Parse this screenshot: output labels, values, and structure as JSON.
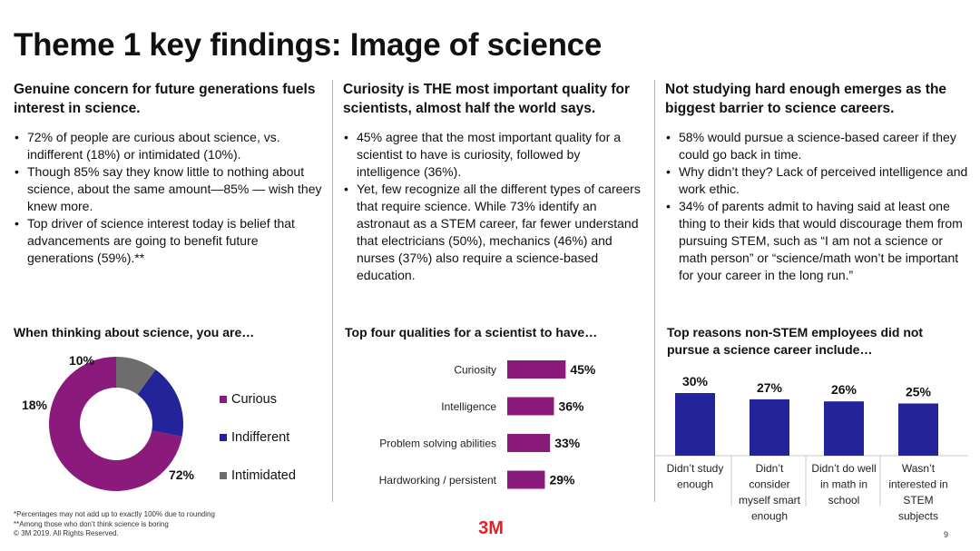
{
  "title": "Theme 1 key findings: Image of science",
  "columns": [
    {
      "heading": "Genuine concern for future generations fuels interest in science.",
      "bullets": [
        "72% of people are curious about science, vs. indifferent (18%) or intimidated (10%).",
        "Though 85% say they know little to nothing about science, about the same amount—85% — wish they knew more.",
        "Top driver of science interest today is belief that advancements are going to benefit future generations (59%).**"
      ]
    },
    {
      "heading": "Curiosity is THE most important quality for scientists, almost half the world says.",
      "bullets": [
        "45% agree that the most important quality for a scientist to have is curiosity, followed by intelligence (36%).",
        "Yet, few recognize all the different types of careers that require science. While 73% identify an astronaut as a STEM career,  far fewer understand that electricians (50%), mechanics (46%) and nurses (37%) also require a science-based education."
      ]
    },
    {
      "heading": "Not studying hard enough emerges as the biggest barrier to science careers.",
      "bullets": [
        "58% would pursue a science-based career if they could go back in time.",
        "Why didn’t they? Lack of perceived intelligence and work ethic.",
        "34% of parents admit to having said at least one thing to their kids that would discourage them from pursuing STEM, such as “I am not a science or math person” or  “science/math won’t be important for your career in the long run.”"
      ]
    }
  ],
  "chart_data": [
    {
      "type": "pie",
      "title": "When thinking about science, you are…",
      "labels": [
        "Curious",
        "Indifferent",
        "Intimidated"
      ],
      "values": [
        72,
        18,
        10
      ],
      "value_labels": [
        "72%",
        "18%",
        "10%"
      ],
      "colors": [
        "#8b1a7d",
        "#23239a",
        "#6d6d6d"
      ],
      "legend": "right"
    },
    {
      "type": "bar",
      "orientation": "horizontal",
      "title": "Top four qualities for a scientist to have…",
      "categories": [
        "Curiosity",
        "Intelligence",
        "Problem solving abilities",
        "Hardworking / persistent"
      ],
      "values": [
        45,
        36,
        33,
        29
      ],
      "value_labels": [
        "45%",
        "36%",
        "33%",
        "29%"
      ],
      "color": "#8b1a7d"
    },
    {
      "type": "bar",
      "orientation": "vertical",
      "title": "Top reasons non-STEM employees did not pursue a science career include…",
      "categories": [
        [
          "Didn’t study",
          "enough"
        ],
        [
          "Didn’t",
          "consider",
          "myself smart",
          "enough"
        ],
        [
          "Didn’t do well",
          "in math in",
          "school"
        ],
        [
          "Wasn’t",
          "interested in",
          "STEM",
          "subjects"
        ]
      ],
      "values": [
        30,
        27,
        26,
        25
      ],
      "value_labels": [
        "30%",
        "27%",
        "26%",
        "25%"
      ],
      "color": "#23239a"
    }
  ],
  "footnotes": {
    "line1": "*Percentages may not add up to exactly 100% due to rounding",
    "line2": "**Among those who don’t think science is boring",
    "copyright": "© 3M 2019.  All Rights Reserved."
  },
  "brand": {
    "logo_text": "3M",
    "color": "#e21f26"
  },
  "page_number": "9"
}
